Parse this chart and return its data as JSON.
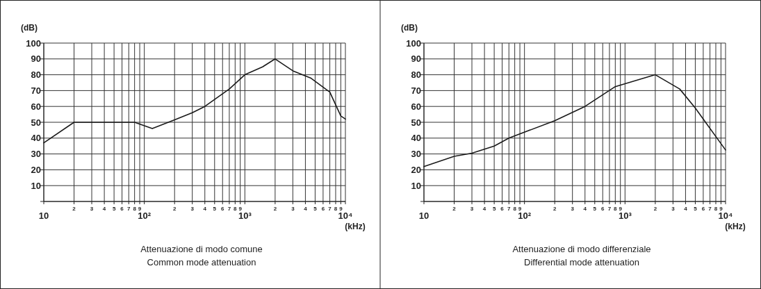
{
  "chart_data": [
    {
      "type": "line",
      "title": "Attenuazione di modo comune",
      "subtitle": "Common mode attenuation",
      "xlabel": "(kHz)",
      "ylabel": "(dB)",
      "log": "x",
      "grid": true,
      "marker": "none",
      "line_style": "solid",
      "xlim": [
        10,
        10000
      ],
      "ylim": [
        0,
        100
      ],
      "xticks": [
        10,
        {
          "value": 20,
          "label": null
        },
        {
          "value": 30,
          "label": null
        },
        {
          "value": 40,
          "label": null
        },
        {
          "value": 50,
          "label": null
        },
        {
          "value": 60,
          "label": null
        },
        {
          "value": 70,
          "label": null
        },
        {
          "value": 80,
          "label": null
        },
        {
          "value": 90,
          "label": null
        },
        {
          "value": 100,
          "label": "10²"
        },
        {
          "value": 200,
          "label": null
        },
        {
          "value": 300,
          "label": null
        },
        {
          "value": 400,
          "label": null
        },
        {
          "value": 500,
          "label": null
        },
        {
          "value": 600,
          "label": null
        },
        {
          "value": 700,
          "label": null
        },
        {
          "value": 800,
          "label": null
        },
        {
          "value": 900,
          "label": null
        },
        {
          "value": 1000,
          "label": "10³"
        },
        {
          "value": 2000,
          "label": null
        },
        {
          "value": 3000,
          "label": null
        },
        {
          "value": 4000,
          "label": null
        },
        {
          "value": 5000,
          "label": null
        },
        {
          "value": 6000,
          "label": null
        },
        {
          "value": 7000,
          "label": null
        },
        {
          "value": 8000,
          "label": null
        },
        {
          "value": 9000,
          "label": null
        },
        {
          "value": 10000,
          "label": "10⁴"
        }
      ],
      "yticks": [
        {
          "value": 0,
          "label": null
        },
        10,
        20,
        30,
        40,
        50,
        60,
        70,
        80,
        90,
        100
      ],
      "annotations": [
        "2",
        "3",
        "4",
        "5",
        "6",
        "7",
        "8",
        "9",
        "2",
        "3",
        "4",
        "5",
        "6",
        "7",
        "8",
        "9",
        "2",
        "3",
        "4",
        "5",
        "6",
        "7",
        "8",
        "9"
      ],
      "series": [
        {
          "color": "#1a1a1a",
          "x": [
            10,
            20,
            80,
            120,
            200,
            300,
            400,
            700,
            1000,
            1500,
            2000,
            3000,
            4500,
            7000,
            9000,
            10000
          ],
          "values": [
            37,
            50,
            50,
            46,
            51.5,
            56,
            60,
            71,
            80,
            85,
            90,
            82.5,
            78,
            69,
            54,
            52
          ]
        }
      ]
    },
    {
      "type": "line",
      "title": "Attenuazione di modo differenziale",
      "subtitle": "Differential mode attenuation",
      "xlabel": "(kHz)",
      "ylabel": "(dB)",
      "log": "x",
      "grid": true,
      "marker": "none",
      "line_style": "solid",
      "xlim": [
        10,
        10000
      ],
      "ylim": [
        0,
        100
      ],
      "xticks": [
        10,
        {
          "value": 20,
          "label": null
        },
        {
          "value": 30,
          "label": null
        },
        {
          "value": 40,
          "label": null
        },
        {
          "value": 50,
          "label": null
        },
        {
          "value": 60,
          "label": null
        },
        {
          "value": 70,
          "label": null
        },
        {
          "value": 80,
          "label": null
        },
        {
          "value": 90,
          "label": null
        },
        {
          "value": 100,
          "label": "10²"
        },
        {
          "value": 200,
          "label": null
        },
        {
          "value": 300,
          "label": null
        },
        {
          "value": 400,
          "label": null
        },
        {
          "value": 500,
          "label": null
        },
        {
          "value": 600,
          "label": null
        },
        {
          "value": 700,
          "label": null
        },
        {
          "value": 800,
          "label": null
        },
        {
          "value": 900,
          "label": null
        },
        {
          "value": 1000,
          "label": "10³"
        },
        {
          "value": 2000,
          "label": null
        },
        {
          "value": 3000,
          "label": null
        },
        {
          "value": 4000,
          "label": null
        },
        {
          "value": 5000,
          "label": null
        },
        {
          "value": 6000,
          "label": null
        },
        {
          "value": 7000,
          "label": null
        },
        {
          "value": 8000,
          "label": null
        },
        {
          "value": 9000,
          "label": null
        },
        {
          "value": 10000,
          "label": "10⁴"
        }
      ],
      "yticks": [
        {
          "value": 0,
          "label": null
        },
        10,
        20,
        30,
        40,
        50,
        60,
        70,
        80,
        90,
        100
      ],
      "annotations": [
        "2",
        "3",
        "4",
        "5",
        "6",
        "7",
        "8",
        "9",
        "2",
        "3",
        "4",
        "5",
        "6",
        "7",
        "8",
        "9",
        "2",
        "3",
        "4",
        "5",
        "6",
        "7",
        "8",
        "9"
      ],
      "series": [
        {
          "color": "#1a1a1a",
          "x": [
            10,
            20,
            30,
            50,
            70,
            200,
            400,
            800,
            2000,
            3500,
            5000,
            10000
          ],
          "values": [
            22,
            28.5,
            30.5,
            35,
            40,
            51,
            60,
            72.5,
            80,
            71,
            59,
            32.5
          ]
        }
      ]
    }
  ]
}
